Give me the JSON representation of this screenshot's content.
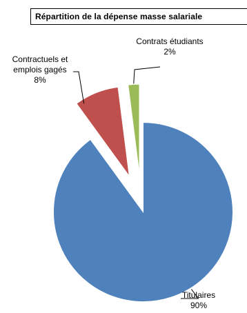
{
  "chart_data": {
    "type": "pie",
    "title": "Répartition de la dépense masse salariale",
    "slices": [
      {
        "name": "Titulaires",
        "value": 90,
        "label": "90%",
        "color": "#4f81bd",
        "exploded": false
      },
      {
        "name": "Contractuels et emplois gagés",
        "name_lines": [
          "Contractuels et",
          "emplois gagés"
        ],
        "value": 8,
        "label": "8%",
        "color": "#c0504d",
        "exploded": true
      },
      {
        "name": "Contrats étudiants",
        "value": 2,
        "label": "2%",
        "color": "#9bbb59",
        "exploded": true
      }
    ],
    "legend": "none",
    "data_labels": "outside with leader lines"
  }
}
